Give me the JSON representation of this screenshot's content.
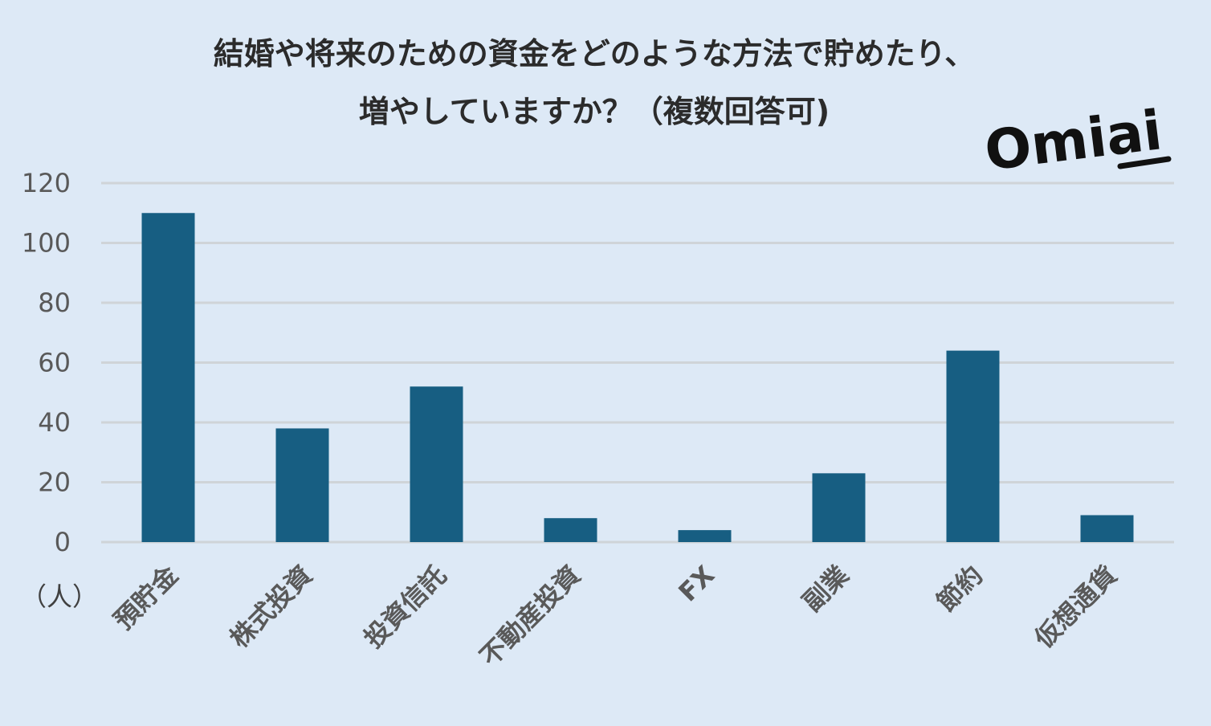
{
  "chart_data": {
    "type": "bar",
    "title_lines": [
      "結婚や将来のための資金をどのような方法で貯めたり、",
      "増やしていますか？（複数回答可)"
    ],
    "ylabel": "（人）",
    "categories": [
      "預貯金",
      "株式投資",
      "投資信託",
      "不動産投資",
      "FX",
      "副業",
      "節約",
      "仮想通貨"
    ],
    "values": [
      110,
      38,
      52,
      8,
      4,
      23,
      64,
      9
    ],
    "ylim": [
      0,
      120
    ],
    "yticks": [
      0,
      20,
      40,
      60,
      80,
      100,
      120
    ],
    "grid": true,
    "bar_color": "#175e82",
    "grid_color": "#cfd4d8"
  },
  "brand": {
    "logo_text": "Omiai"
  }
}
